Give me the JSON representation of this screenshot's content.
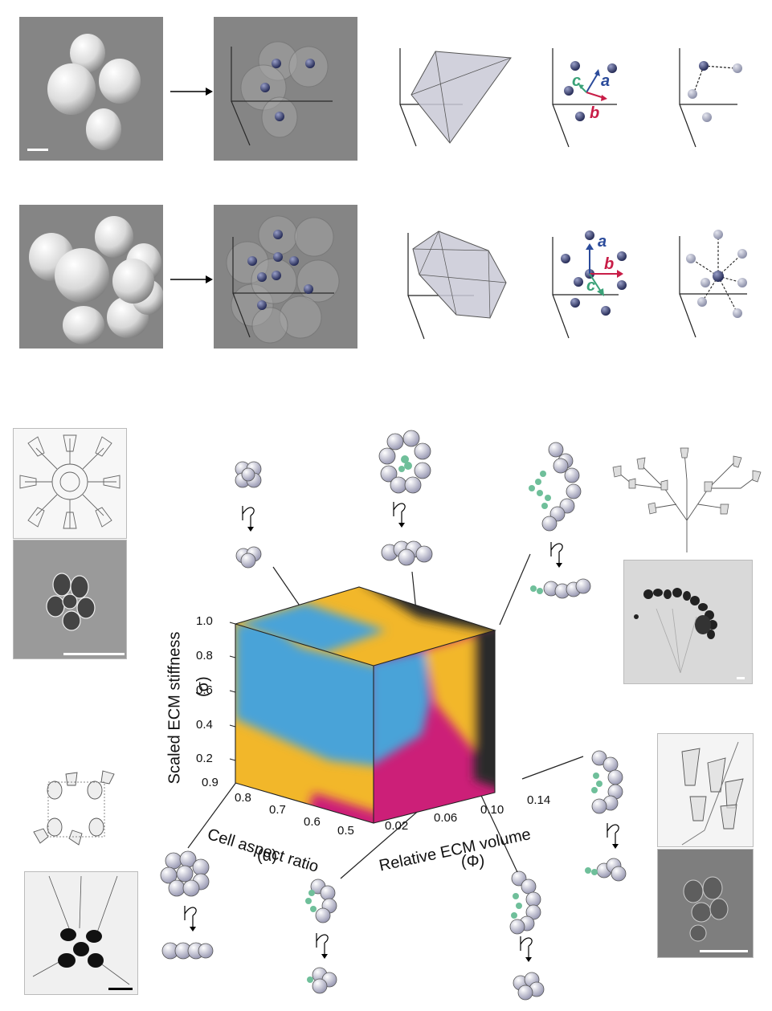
{
  "figure": {
    "top_row_1": {
      "scalebar": "white"
    },
    "vectors": {
      "a": "a",
      "b": "b",
      "c": "c"
    },
    "colors": {
      "a": "#2b4b9b",
      "b": "#c81d47",
      "c": "#3aa278",
      "cube_blue": "#4aa3d8",
      "cube_yellow": "#f2b72a",
      "cube_magenta": "#cc1f78",
      "cube_black": "#2b2b2b",
      "cell_fill": "#c9c9dd",
      "ecm_green": "#6fbf9a"
    }
  },
  "cube": {
    "y_axis_title": "Scaled ECM stiffness",
    "y_axis_symbol": "(σ)",
    "y_ticks": [
      "1.0",
      "0.8",
      "0.6",
      "0.4",
      "0.2"
    ],
    "alpha_axis_title": "Cell aspect ratio",
    "alpha_axis_symbol": "(α)",
    "alpha_ticks": [
      "0.9",
      "0.8",
      "0.7",
      "0.6",
      "0.5"
    ],
    "phi_axis_title": "Relative ECM volume",
    "phi_axis_symbol": "(Φ)",
    "phi_ticks": [
      "0.02",
      "0.06",
      "0.10",
      "0.14"
    ]
  }
}
